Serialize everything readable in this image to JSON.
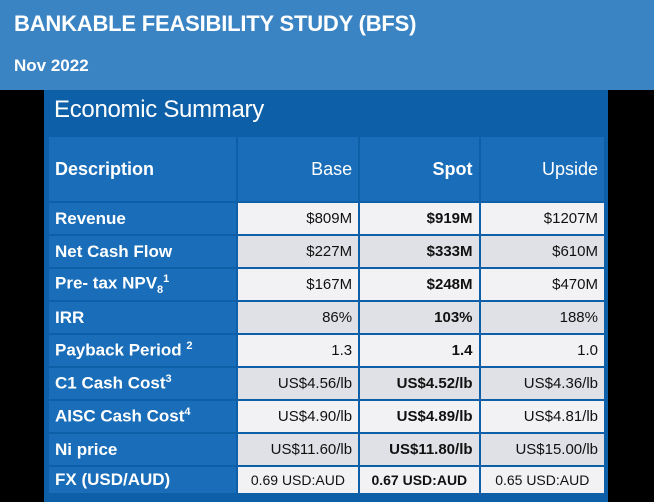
{
  "header": {
    "title": "BANKABLE FEASIBILITY STUDY (BFS)",
    "date": "Nov 2022"
  },
  "panel": {
    "title": "Economic Summary"
  },
  "table": {
    "columns": [
      "Description",
      "Base",
      "Spot",
      "Upside"
    ],
    "rows": [
      {
        "label": "Revenue",
        "base": "$809M",
        "spot": "$919M",
        "upside": "$1207M"
      },
      {
        "label": "Net Cash Flow",
        "base": "$227M",
        "spot": "$333M",
        "upside": "$610M"
      },
      {
        "label": "Pre- tax NPV",
        "sub": "8",
        "sup": "1",
        "base": "$167M",
        "spot": "$248M",
        "upside": "$470M"
      },
      {
        "label": "IRR",
        "base": "86%",
        "spot": "103%",
        "upside": "188%"
      },
      {
        "label": "Payback Period",
        "sup": "2",
        "base": "1.3",
        "spot": "1.4",
        "upside": "1.0"
      },
      {
        "label": "C1 Cash Cost",
        "sup": "3",
        "base": "US$4.56/lb",
        "spot": "US$4.52/lb",
        "upside": "US$4.36/lb"
      },
      {
        "label": "AISC Cash Cost",
        "sup": "4",
        "base": "US$4.90/lb",
        "spot": "US$4.89/lb",
        "upside": "US$4.81/lb"
      },
      {
        "label": "Ni price",
        "base": "US$11.60/lb",
        "spot": "US$11.80/lb",
        "upside": "US$15.00/lb"
      },
      {
        "label": "FX (USD/AUD)",
        "base": "0.69 USD:AUD",
        "spot": "0.67 USD:AUD",
        "upside": "0.65 USD:AUD"
      }
    ]
  },
  "colors": {
    "banner": "#3b84c4",
    "panel": "#0d60a8",
    "label_cell": "#1a6db8",
    "row_light": "#f2f2f4",
    "row_dark": "#dfe1e6",
    "background": "#000000"
  }
}
